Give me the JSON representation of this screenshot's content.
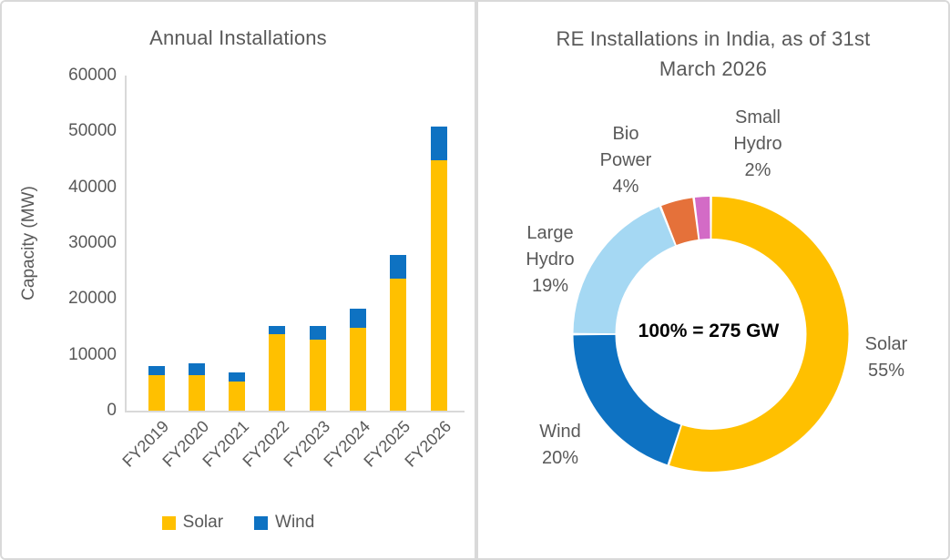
{
  "chart_data": [
    {
      "type": "bar",
      "stacked": true,
      "title": "Annual Installations",
      "ylabel": "Capacity (MW)",
      "xlabel": "",
      "categories": [
        "FY2019",
        "FY2020",
        "FY2021",
        "FY2022",
        "FY2023",
        "FY2024",
        "FY2025",
        "FY2026"
      ],
      "series": [
        {
          "name": "Solar",
          "color": "#FFC000",
          "values": [
            6300,
            6300,
            5200,
            13700,
            12700,
            14800,
            23700,
            44900
          ]
        },
        {
          "name": "Wind",
          "color": "#0E72C2",
          "values": [
            1700,
            2100,
            1600,
            1400,
            2400,
            3400,
            4300,
            6100
          ]
        }
      ],
      "ylim": [
        0,
        60000
      ],
      "ytick_step": 10000,
      "grid": false,
      "xtick_rotation": 45,
      "legend_position": "bottom"
    },
    {
      "type": "pie",
      "donut": true,
      "title": "RE Installations in India, as of 31st March 2026",
      "title_lines": [
        "RE Installations in India, as of 31st",
        "March 2026"
      ],
      "center_label": "100% = 275 GW",
      "start_angle_deg": -90,
      "direction": "clockwise",
      "slices": [
        {
          "label": "Solar",
          "pct": 55,
          "color": "#FFC000"
        },
        {
          "label": "Wind",
          "pct": 20,
          "color": "#0E72C2"
        },
        {
          "label": "Large Hydro",
          "pct": 19,
          "color": "#A5D8F3"
        },
        {
          "label": "Bio Power",
          "pct": 4,
          "color": "#E5713A"
        },
        {
          "label": "Small Hydro",
          "pct": 2,
          "color": "#D36BC6"
        }
      ]
    }
  ],
  "colors": {
    "border": "#d9d9d9",
    "text": "#595959",
    "center_text": "#000000"
  }
}
